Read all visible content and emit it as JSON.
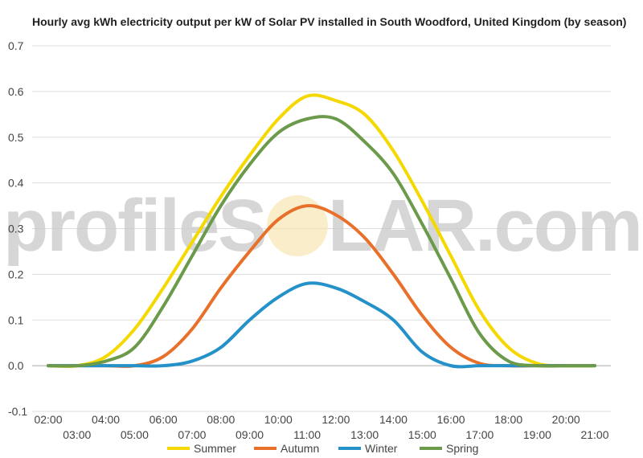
{
  "watermark": {
    "left": "profileS",
    "right": "LAR.com"
  },
  "chart_data": {
    "type": "line",
    "title": "Hourly avg kWh electricity output per kW of Solar PV installed in South Woodford, United Kingdom (by season)",
    "xlabel": "",
    "ylabel": "",
    "ylim": [
      -0.1,
      0.7
    ],
    "yticks": [
      "0.7",
      "0.6",
      "0.5",
      "0.4",
      "0.3",
      "0.2",
      "0.1",
      "0.0",
      "-0.1"
    ],
    "x": [
      "02:00",
      "03:00",
      "04:00",
      "05:00",
      "06:00",
      "07:00",
      "08:00",
      "09:00",
      "10:00",
      "11:00",
      "12:00",
      "13:00",
      "14:00",
      "15:00",
      "16:00",
      "17:00",
      "18:00",
      "19:00",
      "20:00",
      "21:00"
    ],
    "grid": true,
    "legend_position": "bottom",
    "series": [
      {
        "name": "Summer",
        "color": "#f5d800",
        "values": [
          0.0,
          0.0,
          0.02,
          0.08,
          0.17,
          0.27,
          0.37,
          0.46,
          0.54,
          0.59,
          0.58,
          0.55,
          0.47,
          0.36,
          0.24,
          0.12,
          0.04,
          0.005,
          0.0,
          0.0
        ]
      },
      {
        "name": "Autumn",
        "color": "#e8702a",
        "values": [
          0.0,
          0.0,
          0.0,
          0.0,
          0.02,
          0.08,
          0.17,
          0.25,
          0.32,
          0.35,
          0.33,
          0.28,
          0.2,
          0.11,
          0.04,
          0.005,
          0.0,
          0.0,
          0.0,
          0.0
        ]
      },
      {
        "name": "Winter",
        "color": "#2491c8",
        "values": [
          0.0,
          0.0,
          0.0,
          0.0,
          0.0,
          0.01,
          0.04,
          0.1,
          0.15,
          0.18,
          0.17,
          0.14,
          0.1,
          0.03,
          0.0,
          0.0,
          0.0,
          0.0,
          0.0,
          0.0
        ]
      },
      {
        "name": "Spring",
        "color": "#6b9a4a",
        "values": [
          0.0,
          0.0,
          0.01,
          0.04,
          0.13,
          0.24,
          0.35,
          0.44,
          0.51,
          0.54,
          0.54,
          0.49,
          0.42,
          0.31,
          0.19,
          0.07,
          0.01,
          0.0,
          0.0,
          0.0
        ]
      }
    ]
  }
}
